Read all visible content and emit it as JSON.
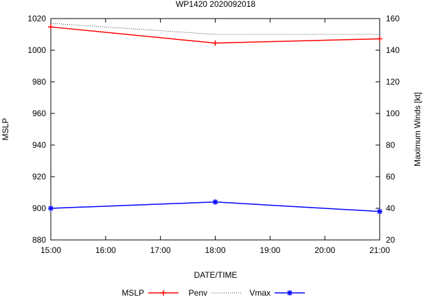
{
  "chart_data": {
    "type": "line",
    "title": "WP1420 2020092018",
    "xlabel": "DATE/TIME",
    "ylabel": "MSLP",
    "y2label": "Maximum Winds [kt]",
    "x_categories": [
      "15:00",
      "16:00",
      "17:00",
      "18:00",
      "19:00",
      "20:00",
      "21:00"
    ],
    "ylim": [
      880,
      1020
    ],
    "y_ticks": [
      880,
      900,
      920,
      940,
      960,
      980,
      1000,
      1020
    ],
    "y2lim": [
      20,
      160
    ],
    "y2_ticks": [
      20,
      40,
      60,
      80,
      100,
      120,
      140,
      160
    ],
    "grid": false,
    "legend_position": "bottom",
    "legend": [
      "MSLP",
      "Penv",
      "Vmax"
    ],
    "series": [
      {
        "name": "MSLP",
        "axis": "left",
        "color": "#ff0000",
        "marker": "plus",
        "style": "solid",
        "x": [
          15,
          18,
          21
        ],
        "values": [
          1014.7,
          1004.5,
          1007.2
        ]
      },
      {
        "name": "Penv",
        "axis": "left",
        "color": "#000000",
        "marker": "none",
        "style": "dotted",
        "x": [
          15,
          18,
          21
        ],
        "values": [
          1017,
          1010,
          1010
        ]
      },
      {
        "name": "Vmax",
        "axis": "right",
        "color": "#0000ff",
        "marker": "star",
        "style": "solid",
        "x": [
          15,
          18,
          21
        ],
        "values": [
          40,
          44,
          38
        ]
      }
    ]
  }
}
